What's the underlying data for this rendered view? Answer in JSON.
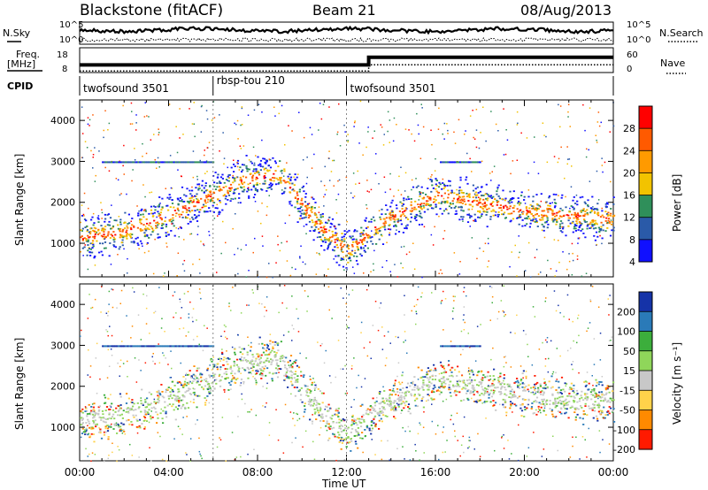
{
  "header": {
    "title": "Blackstone (fitACF)",
    "beam": "Beam 21",
    "date": "08/Aug/2013"
  },
  "noise_panel": {
    "left_label": "N.Sky",
    "right_label": "N.Search",
    "left_ticks": [
      "10^5",
      "10^0"
    ],
    "right_ticks": [
      "10^5",
      "10^0"
    ]
  },
  "freq_panel": {
    "left_label_line1": "Freq.",
    "left_label_line2": "[MHz]",
    "right_label": "Nave",
    "left_ticks": [
      "18",
      "8"
    ],
    "right_ticks": [
      "60",
      "0"
    ]
  },
  "cpid_panel": {
    "label": "CPID",
    "segments": [
      {
        "name": "twofsound 3501",
        "start_hour": 0,
        "end_hour": 6
      },
      {
        "name": "rbsp-tou 210",
        "start_hour": 6,
        "end_hour": 12
      },
      {
        "name": "twofsound 3501",
        "start_hour": 12,
        "end_hour": 24
      }
    ]
  },
  "power_panel": {
    "ylabel": "Slant Range [km]",
    "colorbar_label": "Power [dB]",
    "colorbar_ticks": [
      "28",
      "24",
      "20",
      "16",
      "12",
      "8",
      "4"
    ],
    "colorbar_colors": [
      "#ff0000",
      "#ff5a00",
      "#ff9a00",
      "#f2c300",
      "#2f8f5a",
      "#2a5aa8",
      "#1010ff"
    ]
  },
  "velocity_panel": {
    "ylabel": "Slant Range [km]",
    "colorbar_label": "Velocity [m s⁻¹]",
    "colorbar_ticks": [
      "200",
      "100",
      "50",
      "15",
      "-15",
      "-50",
      "-100",
      "-200"
    ],
    "colorbar_colors": [
      "#1533a8",
      "#2a7ab8",
      "#3cae3c",
      "#8fd65a",
      "#c8c8c8",
      "#ffd24a",
      "#ff8a00",
      "#ff1a00"
    ]
  },
  "x_axis": {
    "label": "Time UT",
    "ticks": [
      "00:00",
      "04:00",
      "08:00",
      "12:00",
      "16:00",
      "20:00",
      "00:00"
    ]
  },
  "chart_data": [
    {
      "type": "heatmap",
      "title": "Blackstone (fitACF)",
      "xlabel": "Time UT",
      "ylabel": "Slant Range [km]",
      "xlim_hours": [
        0,
        24
      ],
      "ylim": [
        180,
        4500
      ],
      "y_ticks": [
        1000,
        2000,
        3000,
        4000
      ],
      "colorbar": {
        "label": "Power [dB]",
        "range": [
          0,
          32
        ],
        "ticks": [
          4,
          8,
          12,
          16,
          20,
          24,
          28
        ]
      },
      "main_scatter_band": [
        {
          "hour": 0.0,
          "range_km": 1150
        },
        {
          "hour": 2.0,
          "range_km": 1300
        },
        {
          "hour": 4.0,
          "range_km": 1700
        },
        {
          "hour": 6.0,
          "range_km": 2200
        },
        {
          "hour": 7.5,
          "range_km": 2600
        },
        {
          "hour": 9.0,
          "range_km": 2700
        },
        {
          "hour": 10.5,
          "range_km": 1600
        },
        {
          "hour": 12.0,
          "range_km": 800
        },
        {
          "hour": 13.5,
          "range_km": 1500
        },
        {
          "hour": 16.0,
          "range_km": 2200
        },
        {
          "hour": 18.0,
          "range_km": 2000
        },
        {
          "hour": 20.0,
          "range_km": 1800
        },
        {
          "hour": 24.0,
          "range_km": 1600
        }
      ]
    },
    {
      "type": "heatmap",
      "xlabel": "Time UT",
      "ylabel": "Slant Range [km]",
      "xlim_hours": [
        0,
        24
      ],
      "ylim": [
        180,
        4500
      ],
      "y_ticks": [
        1000,
        2000,
        3000,
        4000
      ],
      "colorbar": {
        "label": "Velocity [m s⁻¹]",
        "range": [
          -250,
          250
        ],
        "ticks": [
          -200,
          -100,
          -50,
          -15,
          15,
          50,
          100,
          200
        ]
      }
    },
    {
      "type": "line",
      "name_left": "N.Sky",
      "name_right": "N.Search",
      "y_scale": "log",
      "ylim_left": [
        1,
        100000
      ]
    },
    {
      "type": "line",
      "name_left": "Freq. [MHz]",
      "name_right": "Nave",
      "frequency_mhz": [
        {
          "hour": 0,
          "value": 10
        },
        {
          "hour": 13,
          "value": 10
        },
        {
          "hour": 13,
          "value": 14
        },
        {
          "hour": 24,
          "value": 14
        }
      ],
      "nave": [
        {
          "hour": 0,
          "value": 4
        },
        {
          "hour": 13,
          "value": 4
        },
        {
          "hour": 13,
          "value": 20
        },
        {
          "hour": 24,
          "value": 20
        }
      ]
    }
  ]
}
